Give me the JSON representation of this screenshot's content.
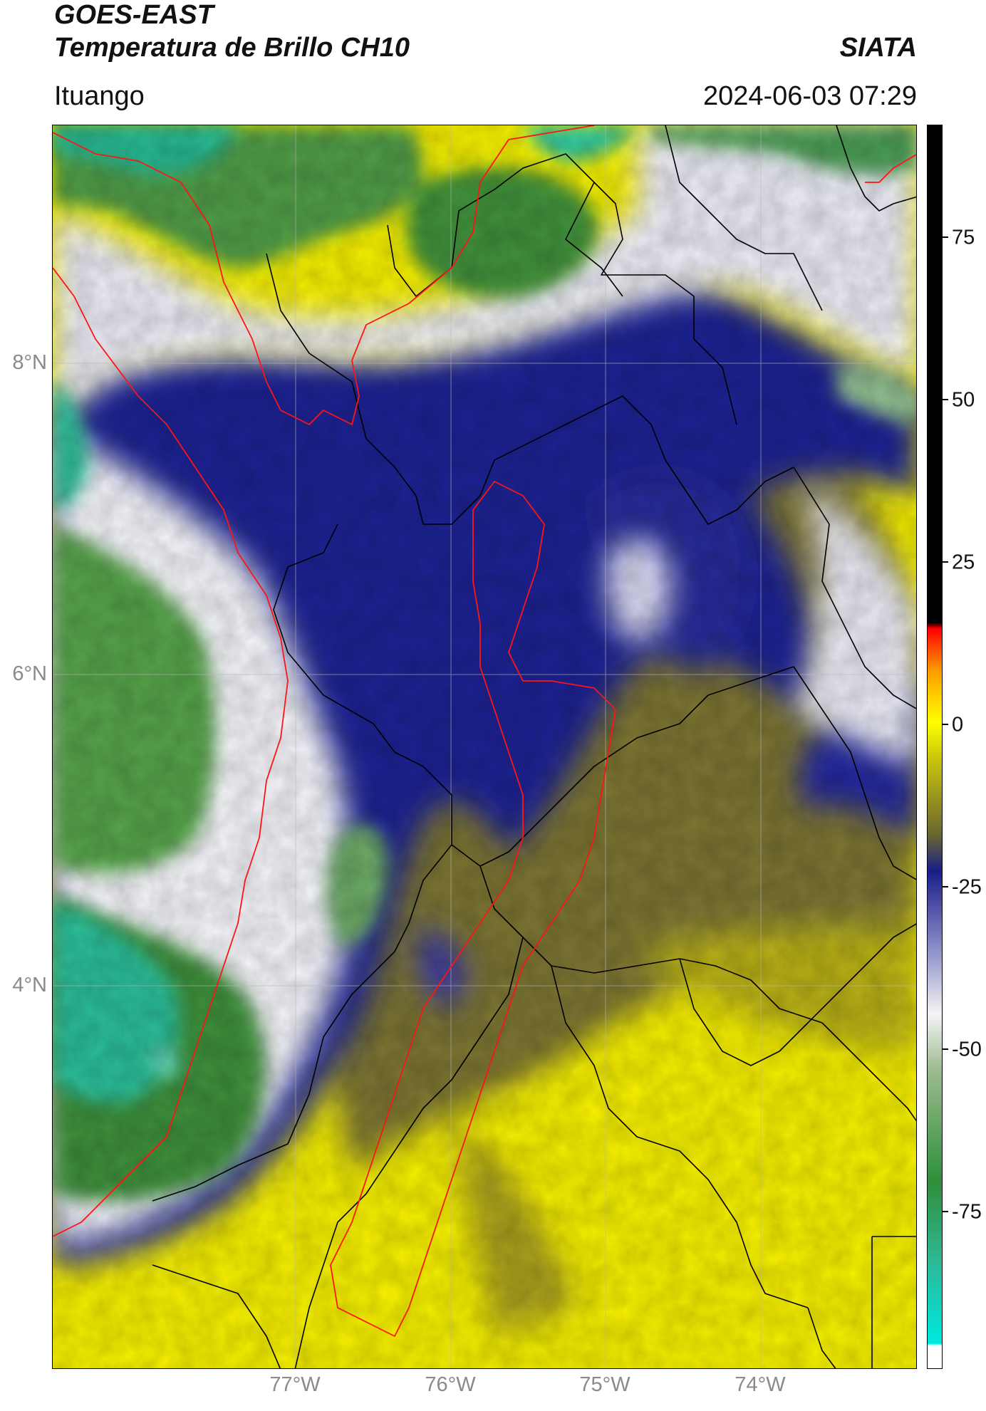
{
  "header": {
    "title_line1": "GOES-EAST",
    "title_line2": "Temperatura de Brillo CH10",
    "organization": "SIATA",
    "location": "Ituango",
    "datetime": "2024-06-03 07:29"
  },
  "map": {
    "lat_labels": [
      "8°N",
      "6°N",
      "4°N"
    ],
    "lon_labels": [
      "77°W",
      "76°W",
      "75°W",
      "74°W"
    ],
    "colors": {
      "cold_sea": "#2ec39a",
      "green": "#3f8a3a",
      "light_green": "#9cbf8f",
      "white": "#f4f4f6",
      "lavender": "#9d9fd2",
      "navy": "#1c1f88",
      "olive": "#6e6a2e",
      "olive_light": "#a7a130",
      "yellow": "#f5f000",
      "admin_line": "#000000",
      "department_line": "#ff1a1a"
    }
  },
  "colorbar": {
    "tick_labels": [
      "75",
      "50",
      "25",
      "0",
      "-25",
      "-50",
      "-75"
    ],
    "colors": [
      "#ffffff",
      "#00e5e5",
      "#2fb691",
      "#2f8f3a",
      "#9dbb8f",
      "#f4f4f4",
      "#9a9cd0",
      "#1a1d8a",
      "#6b682e",
      "#c9c40d",
      "#ffff00",
      "#ffa000",
      "#ff0000",
      "#000000"
    ]
  }
}
